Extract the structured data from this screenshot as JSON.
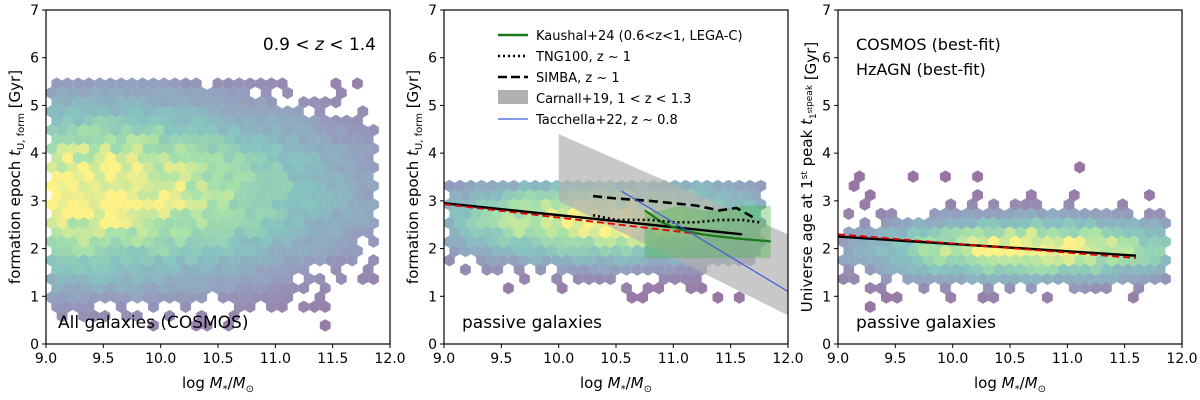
{
  "chart_data": [
    {
      "type": "hexbin",
      "panel": "left",
      "xlabel": "log M*/M⊙",
      "ylabel": "formation epoch t_U,form [Gyr]",
      "xlim": [
        9.0,
        12.0
      ],
      "ylim": [
        0,
        7
      ],
      "xticks": [
        "9.0",
        "9.5",
        "10.0",
        "10.5",
        "11.0",
        "11.5",
        "12.0"
      ],
      "yticks": [
        "0",
        "1",
        "2",
        "3",
        "4",
        "5",
        "6",
        "7"
      ],
      "title": "0.9 < z < 1.4",
      "annotation": "All galaxies (COSMOS)",
      "density": {
        "center": [
          9.35,
          3.2
        ],
        "spread": [
          1.5,
          1.3
        ],
        "xrange": [
          9.0,
          11.9
        ],
        "yrange": [
          0.2,
          5.5
        ]
      }
    },
    {
      "type": "hexbin+lines",
      "panel": "middle",
      "xlabel": "log M*/M⊙",
      "ylabel": "formation epoch t_U,form [Gyr]",
      "xlim": [
        9.0,
        12.0
      ],
      "ylim": [
        0,
        7
      ],
      "xticks": [
        "9.0",
        "9.5",
        "10.0",
        "10.5",
        "11.0",
        "11.5",
        "12.0"
      ],
      "yticks": [
        "0",
        "1",
        "2",
        "3",
        "4",
        "5",
        "6",
        "7"
      ],
      "annotation": "passive galaxies",
      "density": {
        "center": [
          10.4,
          2.6
        ],
        "spread": [
          1.0,
          0.6
        ],
        "xrange": [
          9.0,
          11.8
        ],
        "yrange": [
          0.8,
          3.5
        ]
      },
      "legend": [
        {
          "label": "Kaushal+24 (0.6<z<1, LEGA-C)",
          "color": "#1b7a1b",
          "style": "solid"
        },
        {
          "label": "TNG100, z ~ 1",
          "color": "#000000",
          "style": "dotted"
        },
        {
          "label": "SIMBA, z ~ 1",
          "color": "#000000",
          "style": "dashed"
        },
        {
          "label": "Carnall+19, 1 < z < 1.3",
          "color": "#b0b0b0",
          "style": "band"
        },
        {
          "label": "Tacchella+22, z ~ 0.8",
          "color": "#3b5bdb",
          "style": "thin"
        }
      ],
      "series": [
        {
          "name": "COSMOS best-fit",
          "x": [
            9.0,
            11.6
          ],
          "y": [
            2.95,
            2.3
          ],
          "color": "#000000"
        },
        {
          "name": "HzAGN best-fit",
          "x": [
            9.0,
            11.6
          ],
          "y": [
            2.93,
            2.2
          ],
          "color": "#e00000"
        },
        {
          "name": "Kaushal+24",
          "x": [
            10.75,
            10.9,
            11.05,
            11.25,
            11.4,
            11.6,
            11.85
          ],
          "y": [
            2.8,
            2.55,
            2.4,
            2.3,
            2.25,
            2.2,
            2.15
          ],
          "band_upper": [
            2.75,
            2.8,
            2.9,
            2.8,
            2.8,
            2.9,
            2.9
          ],
          "band_lower": [
            1.8,
            1.8,
            1.8,
            1.8,
            1.8,
            1.8,
            1.8
          ],
          "color": "#1b7a1b"
        },
        {
          "name": "TNG100",
          "x": [
            10.3,
            10.5,
            10.8,
            11.0,
            11.2,
            11.4,
            11.6,
            11.75
          ],
          "y": [
            2.7,
            2.6,
            2.6,
            2.55,
            2.55,
            2.6,
            2.6,
            2.55
          ],
          "color": "#000000"
        },
        {
          "name": "SIMBA",
          "x": [
            10.3,
            10.5,
            10.8,
            11.0,
            11.2,
            11.4,
            11.55,
            11.7
          ],
          "y": [
            3.1,
            3.05,
            3.0,
            2.95,
            2.9,
            2.8,
            2.85,
            2.65
          ],
          "color": "#000000"
        },
        {
          "name": "Carnall+19",
          "x": [
            10.0,
            12.0
          ],
          "y_upper": [
            4.4,
            2.3
          ],
          "y_lower": [
            3.0,
            0.6
          ],
          "color": "#b0b0b0"
        },
        {
          "name": "Tacchella+22",
          "x": [
            10.55,
            12.0
          ],
          "y": [
            3.2,
            1.1
          ],
          "color": "#3b5bdb"
        }
      ]
    },
    {
      "type": "hexbin+lines",
      "panel": "right",
      "xlabel": "log M*/M⊙",
      "ylabel": "Universe age at 1st peak t_1st peak [Gyr]",
      "xlim": [
        9.0,
        12.0
      ],
      "ylim": [
        0,
        7
      ],
      "xticks": [
        "9.0",
        "9.5",
        "10.0",
        "10.5",
        "11.0",
        "11.5",
        "12.0"
      ],
      "yticks": [
        "0",
        "1",
        "2",
        "3",
        "4",
        "5",
        "6",
        "7"
      ],
      "annotation": "passive galaxies",
      "labels": [
        {
          "text": "COSMOS (best-fit)",
          "color": "#000000"
        },
        {
          "text": "HzAGN (best-fit)",
          "color": "#e00000"
        }
      ],
      "density": {
        "center": [
          10.7,
          2.0
        ],
        "spread": [
          1.0,
          0.45
        ],
        "xrange": [
          9.0,
          11.9
        ],
        "yrange": [
          0.6,
          3.8
        ]
      },
      "series": [
        {
          "name": "COSMOS best-fit",
          "x": [
            9.0,
            11.6
          ],
          "y": [
            2.25,
            1.85
          ],
          "color": "#000000"
        },
        {
          "name": "HzAGN best-fit",
          "x": [
            9.0,
            11.6
          ],
          "y": [
            2.3,
            1.8
          ],
          "color": "#e00000"
        }
      ]
    }
  ]
}
